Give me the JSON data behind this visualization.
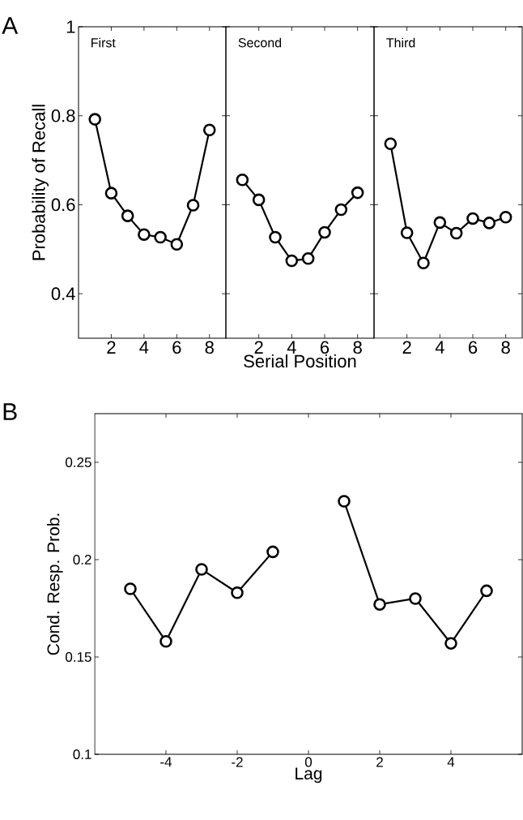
{
  "chart_data": [
    {
      "type": "line",
      "title": "First",
      "ylabel": "Probability of Recall",
      "annotations": [
        "A"
      ],
      "x": [
        1,
        2,
        3,
        4,
        5,
        6,
        7,
        8
      ],
      "values": [
        0.792,
        0.626,
        0.575,
        0.533,
        0.527,
        0.511,
        0.599,
        0.768
      ],
      "color": "#000000",
      "marker": "circle",
      "xlim": [
        0,
        9
      ],
      "ylim": [
        0.3,
        1
      ],
      "xticks": [
        2,
        4,
        6,
        8
      ],
      "yticks": [
        0.4,
        0.6,
        0.8,
        1
      ]
    },
    {
      "type": "line",
      "title": "Second",
      "xlabel": "Serial Position",
      "x": [
        1,
        2,
        3,
        4,
        5,
        6,
        7,
        8
      ],
      "values": [
        0.656,
        0.611,
        0.527,
        0.474,
        0.479,
        0.538,
        0.589,
        0.627
      ],
      "color": "#000000",
      "marker": "circle",
      "xlim": [
        0,
        9
      ],
      "ylim": [
        0.3,
        1
      ],
      "xticks": [
        2,
        4,
        6,
        8
      ],
      "yticks": [
        0.4,
        0.6,
        0.8,
        1
      ],
      "tick_labels": "x"
    },
    {
      "type": "line",
      "title": "Third",
      "x": [
        1,
        2,
        3,
        4,
        5,
        6,
        7,
        8
      ],
      "values": [
        0.737,
        0.537,
        0.469,
        0.56,
        0.536,
        0.569,
        0.559,
        0.572
      ],
      "color": "#000000",
      "marker": "circle",
      "xlim": [
        0,
        9
      ],
      "ylim": [
        0.3,
        1
      ],
      "xticks": [
        2,
        4,
        6,
        8
      ],
      "yticks": [
        0.4,
        0.6,
        0.8,
        1
      ],
      "tick_labels": "x"
    },
    {
      "type": "line",
      "xlabel": "Lag",
      "ylabel": "Cond. Resp. Prob.",
      "annotations": [
        "B"
      ],
      "x": [
        -5,
        -4,
        -3,
        -2,
        -1,
        0,
        1,
        2,
        3,
        4,
        5
      ],
      "values": [
        0.185,
        0.158,
        0.195,
        0.183,
        0.204,
        null,
        0.23,
        0.177,
        0.18,
        0.157,
        0.184
      ],
      "color": "#000000",
      "marker": "circle",
      "xlim": [
        -6,
        6
      ],
      "ylim": [
        0.1,
        0.275
      ],
      "xticks": [
        -4,
        -2,
        0,
        2,
        4
      ],
      "yticks": [
        0.1,
        0.15,
        0.2,
        0.25
      ]
    }
  ]
}
